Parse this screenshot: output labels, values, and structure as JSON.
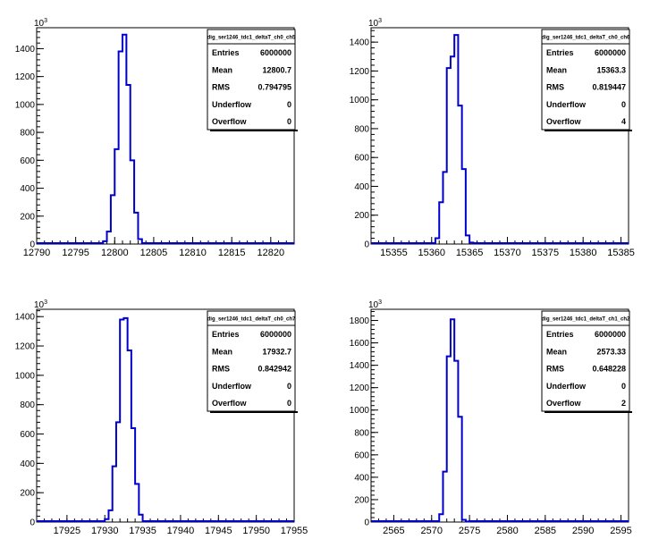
{
  "chart_data": [
    {
      "type": "bar",
      "hist_name": "dig_ser1246_tdc1_deltaT_ch0_ch5",
      "xlim": [
        12790,
        12823
      ],
      "ylim": [
        0,
        1550
      ],
      "y_exponent_base": "10",
      "y_exponent": "3",
      "xticks": [
        "12790",
        "12795",
        "12800",
        "12805",
        "12810",
        "12815",
        "12820"
      ],
      "yticks": [
        "0",
        "200",
        "400",
        "600",
        "800",
        "1000",
        "1200",
        "1400"
      ],
      "bin_edges": [
        12798.5,
        12799.0,
        12799.5,
        12800.0,
        12800.5,
        12801.0,
        12801.5,
        12802.0,
        12802.5,
        12803.0,
        12803.5
      ],
      "bin_values": [
        20,
        90,
        350,
        680,
        1380,
        1500,
        1140,
        600,
        225,
        35
      ],
      "stats": [
        {
          "label": "Entries",
          "value": "6000000"
        },
        {
          "label": "Mean",
          "value": "12800.7"
        },
        {
          "label": "RMS",
          "value": "0.794795"
        },
        {
          "label": "Underflow",
          "value": "0"
        },
        {
          "label": "Overflow",
          "value": "0"
        }
      ]
    },
    {
      "type": "bar",
      "hist_name": "dig_ser1246_tdc1_deltaT_ch0_ch6",
      "xlim": [
        15352,
        15386
      ],
      "ylim": [
        0,
        1500
      ],
      "y_exponent_base": "10",
      "y_exponent": "3",
      "xticks": [
        "15355",
        "15360",
        "15365",
        "15370",
        "15375",
        "15380",
        "15385"
      ],
      "yticks": [
        "0",
        "200",
        "400",
        "600",
        "800",
        "1000",
        "1200",
        "1400"
      ],
      "bin_edges": [
        15360.5,
        15361.0,
        15361.5,
        15362.0,
        15362.5,
        15363.0,
        15363.5,
        15364.0,
        15364.5,
        15365.0,
        15365.5
      ],
      "bin_values": [
        40,
        290,
        500,
        1220,
        1300,
        1450,
        960,
        520,
        60,
        10
      ],
      "stats": [
        {
          "label": "Entries",
          "value": "6000000"
        },
        {
          "label": "Mean",
          "value": "15363.3"
        },
        {
          "label": "RMS",
          "value": "0.819447"
        },
        {
          "label": "Underflow",
          "value": "0"
        },
        {
          "label": "Overflow",
          "value": "4"
        }
      ]
    },
    {
      "type": "bar",
      "hist_name": "dig_ser1246_tdc1_deltaT_ch0_ch7",
      "xlim": [
        17921,
        17955
      ],
      "ylim": [
        0,
        1450
      ],
      "y_exponent_base": "10",
      "y_exponent": "3",
      "xticks": [
        "17925",
        "17930",
        "17935",
        "17940",
        "17945",
        "17950",
        "17955"
      ],
      "yticks": [
        "0",
        "200",
        "400",
        "600",
        "800",
        "1000",
        "1200",
        "1400"
      ],
      "bin_edges": [
        17930.0,
        17930.5,
        17931.0,
        17931.5,
        17932.0,
        17932.5,
        17933.0,
        17933.5,
        17934.0,
        17934.5,
        17935.0
      ],
      "bin_values": [
        20,
        80,
        380,
        680,
        1380,
        1390,
        1170,
        640,
        260,
        50
      ],
      "stats": [
        {
          "label": "Entries",
          "value": "6000000"
        },
        {
          "label": "Mean",
          "value": "17932.7"
        },
        {
          "label": "RMS",
          "value": "0.842942"
        },
        {
          "label": "Underflow",
          "value": "0"
        },
        {
          "label": "Overflow",
          "value": "0"
        }
      ]
    },
    {
      "type": "bar",
      "hist_name": "dig_ser1246_tdc1_deltaT_ch1_ch2",
      "xlim": [
        2562,
        2596
      ],
      "ylim": [
        0,
        1900
      ],
      "y_exponent_base": "10",
      "y_exponent": "3",
      "xticks": [
        "2565",
        "2570",
        "2575",
        "2580",
        "2585",
        "2590",
        "2595"
      ],
      "yticks": [
        "0",
        "200",
        "400",
        "600",
        "800",
        "1000",
        "1200",
        "1400",
        "1600",
        "1800"
      ],
      "bin_edges": [
        2571.0,
        2571.5,
        2572.0,
        2572.5,
        2573.0,
        2573.5,
        2574.0,
        2574.5,
        2575.0
      ],
      "bin_values": [
        70,
        450,
        1480,
        1810,
        1440,
        940,
        20,
        5
      ],
      "stats": [
        {
          "label": "Entries",
          "value": "6000000"
        },
        {
          "label": "Mean",
          "value": "2573.33"
        },
        {
          "label": "RMS",
          "value": "0.648228"
        },
        {
          "label": "Underflow",
          "value": "0"
        },
        {
          "label": "Overflow",
          "value": "2"
        }
      ]
    }
  ]
}
